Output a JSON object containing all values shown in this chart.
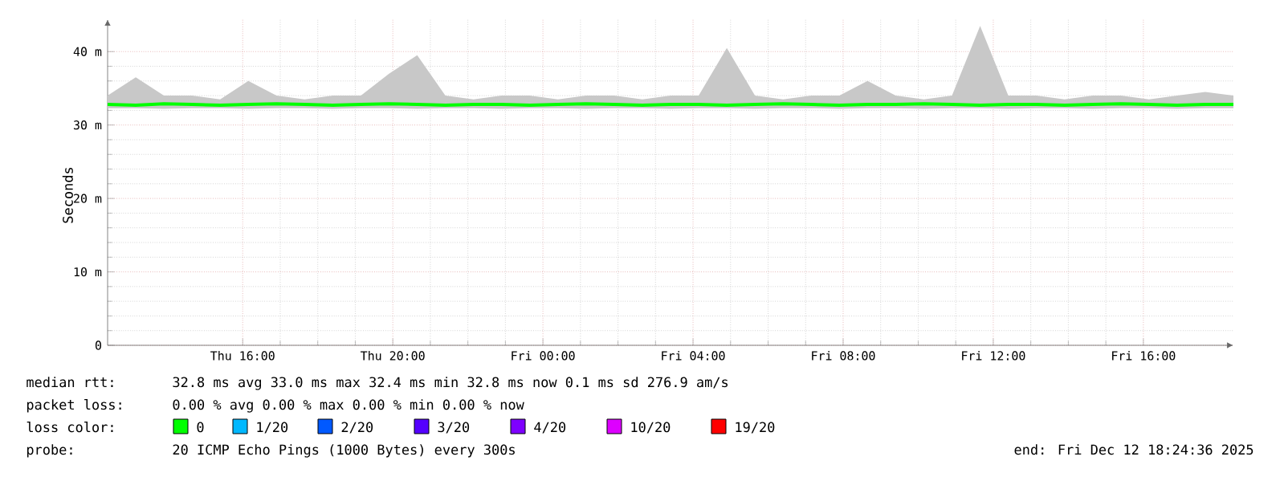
{
  "chart_data": {
    "type": "line",
    "ylabel": "Seconds",
    "x": [
      "2025-12-11T12:24",
      "2025-12-11T13:09",
      "2025-12-11T13:54",
      "2025-12-11T14:39",
      "2025-12-11T15:24",
      "2025-12-11T16:09",
      "2025-12-11T16:54",
      "2025-12-11T17:39",
      "2025-12-11T18:24",
      "2025-12-11T19:09",
      "2025-12-11T19:54",
      "2025-12-11T20:39",
      "2025-12-11T21:24",
      "2025-12-11T22:09",
      "2025-12-11T22:54",
      "2025-12-11T23:39",
      "2025-12-12T00:24",
      "2025-12-12T01:09",
      "2025-12-12T01:54",
      "2025-12-12T02:39",
      "2025-12-12T03:24",
      "2025-12-12T04:09",
      "2025-12-12T04:54",
      "2025-12-12T05:39",
      "2025-12-12T06:24",
      "2025-12-12T07:09",
      "2025-12-12T07:54",
      "2025-12-12T08:39",
      "2025-12-12T09:24",
      "2025-12-12T10:09",
      "2025-12-12T10:54",
      "2025-12-12T11:39",
      "2025-12-12T12:24",
      "2025-12-12T13:09",
      "2025-12-12T13:54",
      "2025-12-12T14:39",
      "2025-12-12T15:24",
      "2025-12-12T16:09",
      "2025-12-12T16:54",
      "2025-12-12T17:39",
      "2025-12-12T18:24"
    ],
    "series": [
      {
        "color": "#00ff00",
        "values": [
          32.8,
          32.7,
          32.9,
          32.8,
          32.7,
          32.8,
          32.9,
          32.8,
          32.7,
          32.8,
          32.9,
          32.8,
          32.7,
          32.8,
          32.8,
          32.7,
          32.8,
          32.9,
          32.8,
          32.7,
          32.8,
          32.8,
          32.7,
          32.8,
          32.9,
          32.8,
          32.7,
          32.8,
          32.8,
          32.9,
          32.8,
          32.7,
          32.8,
          32.8,
          32.7,
          32.8,
          32.9,
          32.8,
          32.7,
          32.8,
          32.8
        ],
        "lower": [
          32.3,
          32.3,
          32.2,
          32.3,
          32.3,
          32.2,
          32.3,
          32.3,
          32.2,
          32.3,
          32.3,
          32.2,
          32.3,
          32.3,
          32.2,
          32.3,
          32.3,
          32.2,
          32.3,
          32.3,
          32.2,
          32.3,
          32.3,
          32.2,
          32.3,
          32.3,
          32.2,
          32.3,
          32.3,
          32.2,
          32.3,
          32.3,
          32.2,
          32.3,
          32.3,
          32.2,
          32.3,
          32.3,
          32.2,
          32.3,
          32.3
        ],
        "upper": [
          34,
          36.5,
          34,
          34,
          33.5,
          36,
          34,
          33.5,
          34,
          34,
          37,
          39.5,
          34,
          33.5,
          34,
          34,
          33.5,
          34,
          34,
          33.5,
          34,
          34,
          40.5,
          34,
          33.5,
          34,
          34,
          36,
          34,
          33.5,
          34,
          43.5,
          34,
          34,
          33.5,
          34,
          34,
          33.5,
          34,
          34.5,
          34
        ]
      }
    ],
    "xlim": [
      "2025-12-11T12:24",
      "2025-12-12T18:24"
    ],
    "xticks": [
      {
        "value": "2025-12-11T16:00",
        "label": "Thu 16:00"
      },
      {
        "value": "2025-12-11T20:00",
        "label": "Thu 20:00"
      },
      {
        "value": "2025-12-12T00:00",
        "label": "Fri 00:00"
      },
      {
        "value": "2025-12-12T04:00",
        "label": "Fri 04:00"
      },
      {
        "value": "2025-12-12T08:00",
        "label": "Fri 08:00"
      },
      {
        "value": "2025-12-12T12:00",
        "label": "Fri 12:00"
      },
      {
        "value": "2025-12-12T16:00",
        "label": "Fri 16:00"
      }
    ],
    "ylim": [
      0,
      44.4
    ],
    "yticks": [
      0,
      {
        "value": 10,
        "label": "10 m"
      },
      {
        "value": 20,
        "label": "20 m"
      },
      {
        "value": 30,
        "label": "30 m"
      },
      {
        "value": 40,
        "label": "40 m"
      }
    ],
    "grid": true,
    "annotations": [
      "median rtt:",
      "32.8 ms avg  33.0 ms max  32.4 ms min  32.8 ms now  0.1 ms sd  276.9   am/s",
      "packet loss:",
      "0.00 % avg  0.00 % max  0.00 % min  0.00 % now",
      "loss color:",
      "0",
      "1/20",
      "2/20",
      "3/20",
      "4/20",
      "10/20",
      "19/20",
      "probe:",
      "20 ICMP Echo Pings (1000 Bytes) every 300s",
      "end: Fri Dec 12 18:24:36 2025"
    ]
  }
}
